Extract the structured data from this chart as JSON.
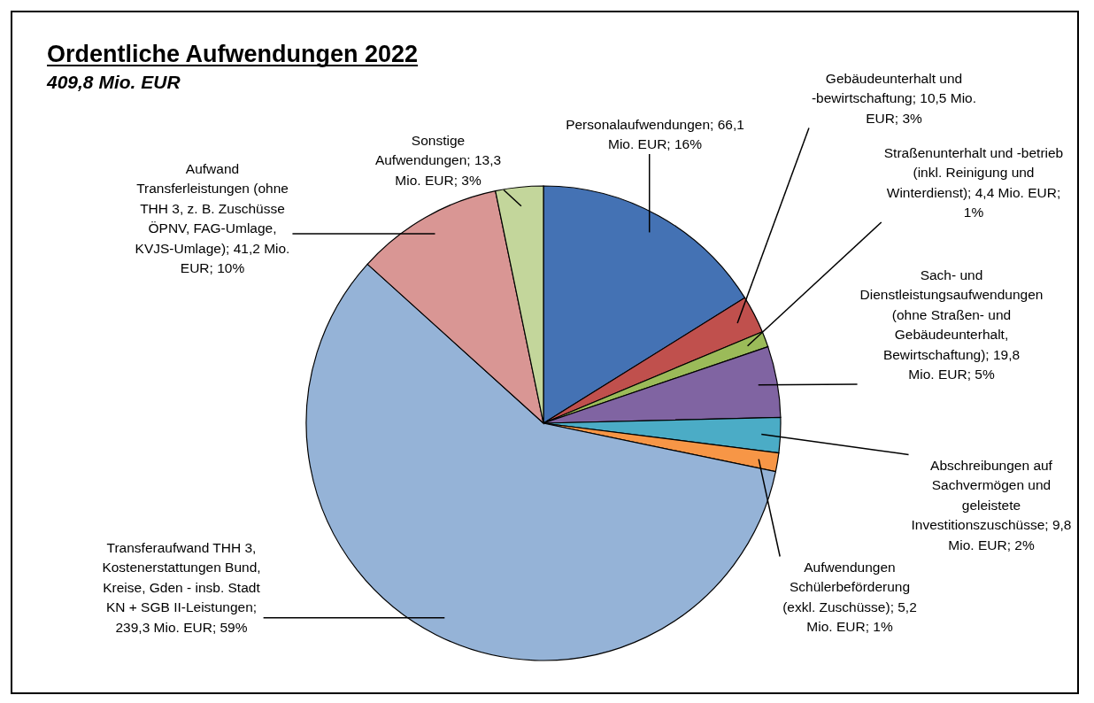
{
  "chart_data": {
    "type": "pie",
    "title": "Ordentliche Aufwendungen 2022",
    "subtitle": "409,8 Mio. EUR",
    "categories": [
      "Personalaufwendungen",
      "Gebäudeunterhalt und -bewirtschaftung",
      "Straßenunterhalt und -betrieb (inkl. Reinigung und Winterdienst)",
      "Sach- und Dienstleistungsaufwendungen (ohne Straßen- und Gebäudeunterhalt, Bewirtschaftung)",
      "Abschreibungen auf Sachvermögen und geleistete Investitionszuschüsse",
      "Aufwendungen Schülerbeförderung (exkl. Zuschüsse)",
      "Transferaufwand THH 3, Kostenerstattungen Bund, Kreise, Gden - insb. Stadt KN + SGB II-Leistungen",
      "Aufwand Transferleistungen (ohne THH 3, z. B. Zuschüsse ÖPNV, FAG-Umlage, KVJS-Umlage)",
      "Sonstige Aufwendungen"
    ],
    "values": [
      66.1,
      10.5,
      4.4,
      19.8,
      9.8,
      5.2,
      239.3,
      41.2,
      13.3
    ],
    "value_labels": [
      "; 66,1 Mio. EUR; 16%",
      "; 10,5 Mio. EUR; 3%",
      "; 4,4 Mio. EUR; 1%",
      "; 19,8 Mio. EUR; 5%",
      "; 9,8 Mio. EUR; 2%",
      "; 5,2 Mio. EUR; 1%",
      "; 239,3 Mio. EUR; 59%",
      "; 41,2 Mio. EUR; 10%",
      "; 13,3 Mio. EUR; 3%"
    ],
    "legend": false,
    "colors": [
      "#4472b4",
      "#c0504d",
      "#9bbb59",
      "#8064a2",
      "#4bacc6",
      "#f79646",
      "#95b3d7",
      "#d99694",
      "#c3d69b"
    ]
  }
}
